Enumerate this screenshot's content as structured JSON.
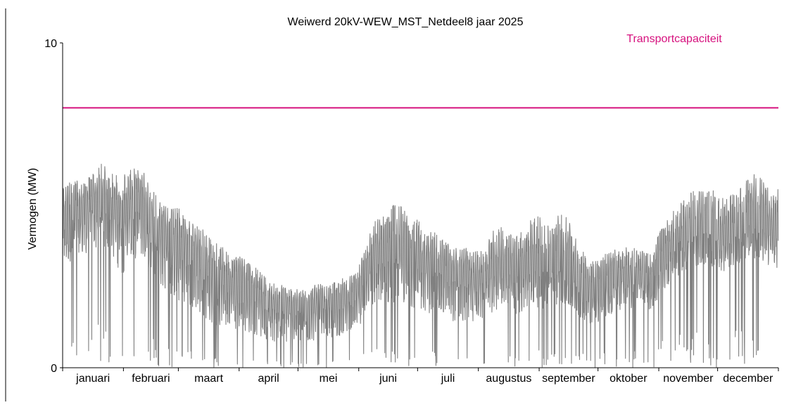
{
  "chart_data": {
    "type": "line",
    "title": "Weiwerd 20kV-WEW_MST_Netdeel8 jaar 2025",
    "xlabel": "",
    "ylabel": "Vermogen (MW)",
    "xlim": [
      "2025-01-01",
      "2025-12-31"
    ],
    "ylim": [
      0,
      10
    ],
    "grid": false,
    "legend_position": "top-right",
    "y_ticks": [
      "0",
      "10"
    ],
    "x_tick_labels": [
      "januari",
      "februari",
      "maart",
      "april",
      "mei",
      "juni",
      "juli",
      "augustus",
      "september",
      "oktober",
      "november",
      "december"
    ],
    "annotations": [
      {
        "text": "Transportcapaciteit",
        "color": "#d6117e"
      }
    ],
    "series": [
      {
        "name": "Transportcapaciteit",
        "type": "hline",
        "color": "#d6117e",
        "value": 8.0
      },
      {
        "name": "",
        "type": "line",
        "color": "#808080",
        "x": [
          "2025-01-01",
          "2025-01-06",
          "2025-01-11",
          "2025-01-16",
          "2025-01-21",
          "2025-01-26",
          "2025-01-31",
          "2025-02-05",
          "2025-02-10",
          "2025-02-15",
          "2025-02-20",
          "2025-02-25",
          "2025-03-02",
          "2025-03-07",
          "2025-03-12",
          "2025-03-17",
          "2025-03-22",
          "2025-03-27",
          "2025-04-01",
          "2025-04-06",
          "2025-04-11",
          "2025-04-16",
          "2025-04-21",
          "2025-04-26",
          "2025-05-01",
          "2025-05-06",
          "2025-05-11",
          "2025-05-16",
          "2025-05-21",
          "2025-05-26",
          "2025-05-31",
          "2025-06-05",
          "2025-06-10",
          "2025-06-15",
          "2025-06-20",
          "2025-06-25",
          "2025-06-30",
          "2025-07-05",
          "2025-07-10",
          "2025-07-15",
          "2025-07-20",
          "2025-07-25",
          "2025-07-30",
          "2025-08-04",
          "2025-08-09",
          "2025-08-14",
          "2025-08-19",
          "2025-08-24",
          "2025-08-29",
          "2025-09-03",
          "2025-09-08",
          "2025-09-13",
          "2025-09-18",
          "2025-09-23",
          "2025-09-28",
          "2025-10-03",
          "2025-10-08",
          "2025-10-13",
          "2025-10-18",
          "2025-10-23",
          "2025-10-28",
          "2025-11-02",
          "2025-11-07",
          "2025-11-12",
          "2025-11-17",
          "2025-11-22",
          "2025-11-27",
          "2025-12-02",
          "2025-12-07",
          "2025-12-12",
          "2025-12-17",
          "2025-12-22",
          "2025-12-27"
        ],
        "max": [
          5.6,
          5.8,
          5.7,
          6.0,
          6.3,
          6.0,
          5.9,
          6.1,
          6.2,
          5.6,
          5.3,
          5.0,
          4.9,
          4.6,
          4.4,
          4.0,
          3.8,
          3.5,
          3.5,
          3.3,
          3.0,
          2.7,
          2.6,
          2.5,
          2.4,
          2.4,
          2.6,
          2.5,
          2.7,
          2.8,
          2.9,
          4.0,
          4.6,
          4.8,
          5.2,
          4.8,
          4.6,
          4.3,
          4.2,
          3.9,
          3.7,
          3.7,
          3.6,
          3.6,
          4.3,
          4.4,
          4.0,
          4.3,
          4.7,
          4.6,
          4.6,
          4.8,
          4.3,
          3.6,
          3.3,
          3.4,
          3.7,
          3.7,
          3.8,
          3.6,
          3.5,
          4.3,
          4.7,
          5.1,
          5.4,
          5.5,
          5.6,
          5.2,
          5.3,
          5.5,
          5.9,
          6.0,
          5.5
        ],
        "typ": [
          4.4,
          4.6,
          4.7,
          4.9,
          5.0,
          4.8,
          4.6,
          4.8,
          4.9,
          4.3,
          4.0,
          3.7,
          3.6,
          3.4,
          3.2,
          2.9,
          2.7,
          2.5,
          2.4,
          2.3,
          2.1,
          1.9,
          1.8,
          1.8,
          1.8,
          1.8,
          1.9,
          1.8,
          2.0,
          2.0,
          2.1,
          3.0,
          3.2,
          3.3,
          3.4,
          3.3,
          3.2,
          3.0,
          3.0,
          2.8,
          2.7,
          2.7,
          2.6,
          2.6,
          2.9,
          3.0,
          2.8,
          2.9,
          3.1,
          3.0,
          3.0,
          3.1,
          2.8,
          2.5,
          2.3,
          2.4,
          2.6,
          2.7,
          2.8,
          2.7,
          2.6,
          3.2,
          3.6,
          3.9,
          4.1,
          4.2,
          4.2,
          3.9,
          4.0,
          4.1,
          4.4,
          4.4,
          4.1
        ],
        "min": [
          2.8,
          3.0,
          3.1,
          3.3,
          3.4,
          3.2,
          2.4,
          2.9,
          3.1,
          2.5,
          2.2,
          1.8,
          1.6,
          1.4,
          1.2,
          1.0,
          0.9,
          0.8,
          0.9,
          0.8,
          0.7,
          0.6,
          0.5,
          0.5,
          0.5,
          0.5,
          0.6,
          0.6,
          0.7,
          0.8,
          0.9,
          1.4,
          1.6,
          1.6,
          1.7,
          1.6,
          1.5,
          1.3,
          1.4,
          1.2,
          1.1,
          1.1,
          1.1,
          1.2,
          1.4,
          1.5,
          1.3,
          1.4,
          1.6,
          1.5,
          1.6,
          1.7,
          1.5,
          1.2,
          1.1,
          1.2,
          1.4,
          1.5,
          1.6,
          1.6,
          1.5,
          2.0,
          2.4,
          2.6,
          2.8,
          2.9,
          2.9,
          2.7,
          2.8,
          2.9,
          3.1,
          3.1,
          2.8
        ],
        "dips_to_zero": true
      }
    ]
  }
}
